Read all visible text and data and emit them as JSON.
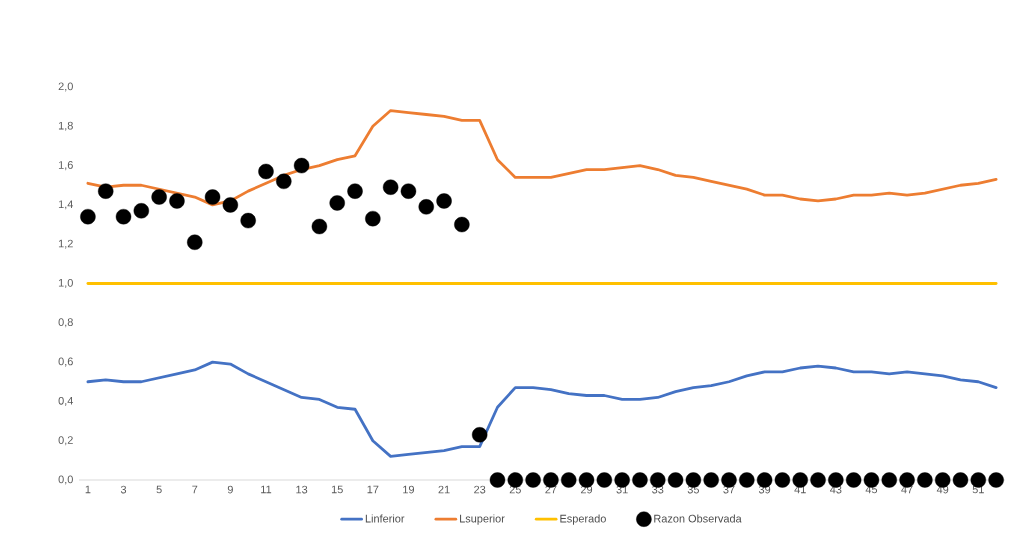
{
  "chart_data": {
    "type": "line",
    "categories": [
      "1",
      null,
      "3",
      null,
      "5",
      null,
      "7",
      null,
      "9",
      null,
      "11",
      null,
      "13",
      null,
      "15",
      null,
      "17",
      null,
      "19",
      null,
      "21",
      null,
      "23",
      null,
      "25",
      null,
      "27",
      null,
      "29",
      null,
      "31",
      null,
      "33",
      null,
      "35",
      null,
      "37",
      null,
      "39",
      null,
      "41",
      null,
      "43",
      null,
      "45",
      null,
      "47",
      null,
      "49",
      null,
      "51",
      null
    ],
    "ylim": [
      0,
      2
    ],
    "yticks": [
      {
        "value": 0,
        "label": "0,0"
      },
      {
        "value": 0.2,
        "label": "0,2"
      },
      {
        "value": 0.4,
        "label": "0,4"
      },
      {
        "value": 0.6,
        "label": "0,6"
      },
      {
        "value": 0.8,
        "label": "0,8"
      },
      {
        "value": 1,
        "label": "1,0"
      },
      {
        "value": 1.2,
        "label": "1,2"
      },
      {
        "value": 1.4,
        "label": "1,4"
      },
      {
        "value": 1.6,
        "label": "1,6"
      },
      {
        "value": 1.8,
        "label": "1,8"
      },
      {
        "value": 2,
        "label": "2,0"
      }
    ],
    "legend": "bottom",
    "line_style": "solid",
    "series": [
      {
        "name": "Linferior",
        "marker": "none",
        "color": "#4472c4",
        "values": [
          0.5,
          0.51,
          0.5,
          0.5,
          0.52,
          0.54,
          0.56,
          0.6,
          0.59,
          0.54,
          0.5,
          0.46,
          0.42,
          0.41,
          0.37,
          0.36,
          0.2,
          0.12,
          0.13,
          0.14,
          0.15,
          0.17,
          0.17,
          0.37,
          0.47,
          0.47,
          0.46,
          0.44,
          0.43,
          0.43,
          0.41,
          0.41,
          0.42,
          0.45,
          0.47,
          0.48,
          0.5,
          0.53,
          0.55,
          0.55,
          0.57,
          0.58,
          0.57,
          0.55,
          0.55,
          0.54,
          0.55,
          0.54,
          0.53,
          0.51,
          0.5,
          0.47
        ]
      },
      {
        "name": "Lsuperior",
        "marker": "none",
        "color": "#ed7d31",
        "values": [
          1.51,
          1.49,
          1.5,
          1.5,
          1.48,
          1.46,
          1.44,
          1.4,
          1.42,
          1.47,
          1.51,
          1.55,
          1.58,
          1.6,
          1.63,
          1.65,
          1.8,
          1.88,
          1.87,
          1.86,
          1.85,
          1.83,
          1.83,
          1.63,
          1.54,
          1.54,
          1.54,
          1.56,
          1.58,
          1.58,
          1.59,
          1.6,
          1.58,
          1.55,
          1.54,
          1.52,
          1.5,
          1.48,
          1.45,
          1.45,
          1.43,
          1.42,
          1.43,
          1.45,
          1.45,
          1.46,
          1.45,
          1.46,
          1.48,
          1.5,
          1.51,
          1.53
        ]
      },
      {
        "name": "Esperado",
        "marker": "none",
        "color": "#ffc000",
        "values": [
          1,
          1,
          1,
          1,
          1,
          1,
          1,
          1,
          1,
          1,
          1,
          1,
          1,
          1,
          1,
          1,
          1,
          1,
          1,
          1,
          1,
          1,
          1,
          1,
          1,
          1,
          1,
          1,
          1,
          1,
          1,
          1,
          1,
          1,
          1,
          1,
          1,
          1,
          1,
          1,
          1,
          1,
          1,
          1,
          1,
          1,
          1,
          1,
          1,
          1,
          1,
          1
        ]
      },
      {
        "name": "Razon Observada",
        "type": "scatter",
        "marker": "circle",
        "color": "#000000",
        "values": [
          1.34,
          1.47,
          1.34,
          1.37,
          1.44,
          1.42,
          1.21,
          1.44,
          1.4,
          1.32,
          1.57,
          1.52,
          1.6,
          1.29,
          1.41,
          1.47,
          1.33,
          1.49,
          1.47,
          1.39,
          1.42,
          1.3,
          0.23,
          0,
          0,
          0,
          0,
          0,
          0,
          0,
          0,
          0,
          0,
          0,
          0,
          0,
          0,
          0,
          0,
          0,
          0,
          0,
          0,
          0,
          0,
          0,
          0,
          0,
          0,
          0,
          0,
          0
        ]
      }
    ]
  }
}
